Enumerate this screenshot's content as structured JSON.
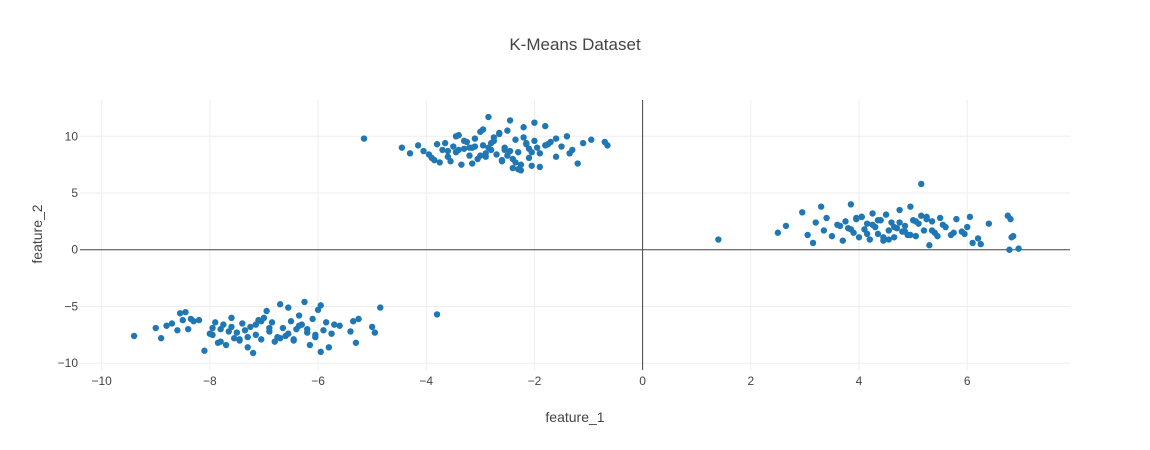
{
  "chart_data": {
    "type": "scatter",
    "title": "K-Means Dataset",
    "xlabel": "feature_1",
    "ylabel": "feature_2",
    "xlim": [
      -10.4,
      7.9
    ],
    "ylim": [
      -10.6,
      13.2
    ],
    "xticks": [
      -10,
      -8,
      -6,
      -4,
      -2,
      0,
      2,
      4,
      6
    ],
    "yticks": [
      -10,
      -5,
      0,
      5,
      10
    ],
    "xtick_labels": [
      "−10",
      "−8",
      "−6",
      "−4",
      "−2",
      "0",
      "2",
      "4",
      "6"
    ],
    "ytick_labels": [
      "−10",
      "−5",
      "0",
      "5",
      "10"
    ],
    "grid": true,
    "zero_lines": true,
    "marker_color": "#1f77b4",
    "grid_color": "#eeeeee",
    "zero_line_color": "#444444",
    "series": [
      {
        "x": [
          -5.15,
          -4.45,
          -4.3,
          -4.15,
          -4.05,
          -3.95,
          -3.9,
          -3.85,
          -3.8,
          -3.75,
          -3.7,
          -3.65,
          -3.6,
          -3.55,
          -3.5,
          -3.45,
          -3.4,
          -3.35,
          -3.3,
          -3.25,
          -3.2,
          -3.15,
          -3.1,
          -3.05,
          -3.0,
          -2.95,
          -2.9,
          -2.85,
          -2.8,
          -2.75,
          -2.7,
          -2.65,
          -2.6,
          -2.55,
          -2.5,
          -2.45,
          -2.4,
          -2.35,
          -2.3,
          -2.25,
          -2.2,
          -2.15,
          -2.1,
          -2.05,
          -2.0,
          -1.95,
          -1.9,
          -1.8,
          -1.7,
          -1.6,
          -1.5,
          -1.4,
          -1.3,
          -1.2,
          -1.1,
          -0.95,
          -0.7,
          -0.65,
          -3.4,
          -3.2,
          -3.0,
          -2.8,
          -2.6,
          -2.4,
          -2.2,
          -2.0,
          -1.8,
          -3.6,
          -3.3,
          -2.9,
          -2.5,
          -2.3,
          -2.1,
          -1.9,
          -1.6,
          -2.75,
          -2.45,
          -2.25,
          -3.1,
          -2.65,
          -2.35,
          -3.45,
          -2.05,
          -1.75,
          -2.85,
          -2.55,
          -2.15,
          -1.35,
          -2.95,
          -3.15
        ],
        "y": [
          9.8,
          9.0,
          8.5,
          9.2,
          8.7,
          8.4,
          8.1,
          7.9,
          9.3,
          7.7,
          8.8,
          9.4,
          8.2,
          7.8,
          9.1,
          8.6,
          10.1,
          7.5,
          8.9,
          9.5,
          8.3,
          7.6,
          9.8,
          8.0,
          10.4,
          9.2,
          8.5,
          11.7,
          8.8,
          9.6,
          8.4,
          10.2,
          7.9,
          9.0,
          8.3,
          11.4,
          7.2,
          9.7,
          8.6,
          7.0,
          10.8,
          9.3,
          8.1,
          7.4,
          11.2,
          9.0,
          8.5,
          10.9,
          9.5,
          8.2,
          9.1,
          10.0,
          8.8,
          7.6,
          9.4,
          9.7,
          9.5,
          9.2,
          8.8,
          9.0,
          8.3,
          9.4,
          7.8,
          8.0,
          9.9,
          9.6,
          9.2,
          8.7,
          9.6,
          8.2,
          10.5,
          7.1,
          8.9,
          7.3,
          9.8,
          9.9,
          8.7,
          7.5,
          9.1,
          10.3,
          7.7,
          10.0,
          8.6,
          9.3,
          9.0,
          8.8,
          9.4,
          8.5,
          10.6,
          9.0
        ]
      },
      {
        "x": [
          1.4,
          2.5,
          2.65,
          2.95,
          3.05,
          3.15,
          3.2,
          3.3,
          3.35,
          3.4,
          3.5,
          3.6,
          3.7,
          3.75,
          3.8,
          3.85,
          3.9,
          3.95,
          4.0,
          4.05,
          4.1,
          4.15,
          4.2,
          4.25,
          4.3,
          4.35,
          4.4,
          4.45,
          4.5,
          4.55,
          4.6,
          4.65,
          4.7,
          4.75,
          4.8,
          4.85,
          4.9,
          4.95,
          5.0,
          5.05,
          5.1,
          5.15,
          5.2,
          5.25,
          5.3,
          5.35,
          5.4,
          5.5,
          5.6,
          5.7,
          5.8,
          5.9,
          6.0,
          6.05,
          6.1,
          6.2,
          6.25,
          6.4,
          6.75,
          6.8,
          6.85,
          6.95,
          3.65,
          3.95,
          4.15,
          4.35,
          4.55,
          4.75,
          4.95,
          5.15,
          5.35,
          5.55,
          5.75,
          5.95,
          4.05,
          4.45,
          4.85,
          5.25,
          3.85,
          4.65,
          5.45,
          6.78,
          6.82,
          4.25,
          5.05
        ],
        "y": [
          0.9,
          1.5,
          2.1,
          3.3,
          1.3,
          0.6,
          2.4,
          3.8,
          1.7,
          2.8,
          1.2,
          2.2,
          0.8,
          2.5,
          1.9,
          4.0,
          1.5,
          2.7,
          1.1,
          2.9,
          1.8,
          2.3,
          0.9,
          3.2,
          2.0,
          1.4,
          2.6,
          0.8,
          3.1,
          1.7,
          2.4,
          1.1,
          1.9,
          3.5,
          1.6,
          2.1,
          1.3,
          3.8,
          2.6,
          1.2,
          2.3,
          5.8,
          1.7,
          2.9,
          0.4,
          2.5,
          1.5,
          2.8,
          2.0,
          1.3,
          2.7,
          1.6,
          2.0,
          2.9,
          0.6,
          1.0,
          0.5,
          2.3,
          3.0,
          2.7,
          1.2,
          0.1,
          2.1,
          2.8,
          1.4,
          2.6,
          0.9,
          2.4,
          1.3,
          3.0,
          1.7,
          2.2,
          1.5,
          1.4,
          2.9,
          1.1,
          1.6,
          2.7,
          1.8,
          2.0,
          1.2,
          0.0,
          1.1,
          2.2,
          2.5
        ]
      },
      {
        "x": [
          -9.4,
          -9.0,
          -8.9,
          -8.7,
          -8.6,
          -8.55,
          -8.5,
          -8.45,
          -8.4,
          -8.3,
          -8.2,
          -8.1,
          -8.0,
          -7.95,
          -7.9,
          -7.85,
          -7.8,
          -7.75,
          -7.7,
          -7.65,
          -7.6,
          -7.55,
          -7.5,
          -7.45,
          -7.4,
          -7.35,
          -7.3,
          -7.25,
          -7.2,
          -7.15,
          -7.1,
          -7.05,
          -7.0,
          -6.95,
          -6.9,
          -6.85,
          -6.8,
          -6.75,
          -6.7,
          -6.65,
          -6.6,
          -6.55,
          -6.5,
          -6.45,
          -6.4,
          -6.35,
          -6.3,
          -6.25,
          -6.2,
          -6.15,
          -6.1,
          -6.05,
          -6.0,
          -5.95,
          -5.9,
          -5.85,
          -5.8,
          -5.75,
          -5.6,
          -5.4,
          -5.35,
          -5.3,
          -5.25,
          -5.0,
          -4.95,
          -4.85,
          -3.8,
          -8.8,
          -8.35,
          -7.95,
          -7.6,
          -7.3,
          -6.9,
          -6.55,
          -6.2,
          -5.95,
          -7.45,
          -7.05,
          -6.7,
          -6.35,
          -7.8,
          -6.05,
          -7.15,
          -6.45,
          -5.7
        ],
        "y": [
          -7.6,
          -6.9,
          -7.8,
          -6.5,
          -7.1,
          -5.6,
          -6.2,
          -5.5,
          -7.0,
          -6.3,
          -6.2,
          -8.9,
          -7.4,
          -6.9,
          -6.4,
          -8.2,
          -7.0,
          -6.6,
          -8.4,
          -7.2,
          -6.0,
          -7.8,
          -7.3,
          -8.0,
          -6.5,
          -7.1,
          -8.6,
          -6.8,
          -9.1,
          -7.5,
          -6.2,
          -7.9,
          -6.0,
          -5.4,
          -7.2,
          -6.4,
          -8.1,
          -7.7,
          -4.8,
          -6.9,
          -7.6,
          -5.1,
          -6.3,
          -8.0,
          -7.0,
          -5.8,
          -6.6,
          -4.6,
          -7.3,
          -8.4,
          -6.1,
          -7.7,
          -5.3,
          -9.0,
          -7.1,
          -6.4,
          -8.6,
          -7.4,
          -6.7,
          -7.2,
          -6.3,
          -8.2,
          -6.1,
          -6.8,
          -7.3,
          -5.1,
          -5.7,
          -6.7,
          -6.1,
          -7.5,
          -6.8,
          -7.7,
          -6.9,
          -7.4,
          -7.0,
          -4.9,
          -7.9,
          -6.3,
          -7.8,
          -6.7,
          -8.1,
          -7.5,
          -6.6,
          -7.9,
          -6.6
        ]
      }
    ]
  }
}
